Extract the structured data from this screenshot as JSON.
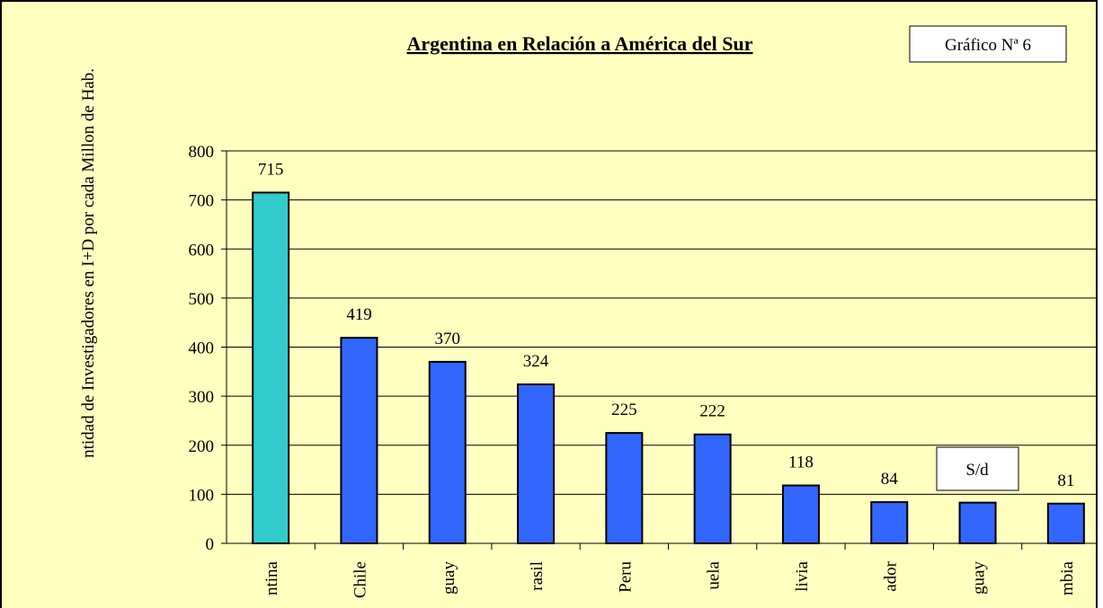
{
  "chart_data": {
    "type": "bar",
    "title": "Argentina en Relación a América del Sur",
    "badge": "Gráfico Nª 6",
    "y_label": "ntidad de Investigadores en I+D por cada Millon de Hab.",
    "annotation": "S/d",
    "categories": [
      "ntina",
      "Chile",
      "guay",
      "rasil",
      "Peru",
      "uela",
      "livia",
      "ador",
      "guay",
      "mbia"
    ],
    "values": [
      715,
      419,
      370,
      324,
      225,
      222,
      118,
      84,
      83,
      81
    ],
    "value_labels": [
      "715",
      "419",
      "370",
      "324",
      "225",
      "222",
      "118",
      "84",
      null,
      "81"
    ],
    "colors": [
      "#33cccc",
      "#3366ff",
      "#3366ff",
      "#3366ff",
      "#3366ff",
      "#3366ff",
      "#3366ff",
      "#3366ff",
      "#3366ff",
      "#3366ff"
    ],
    "ylim": [
      0,
      800
    ],
    "yticks": [
      0,
      100,
      200,
      300,
      400,
      500,
      600,
      700,
      800
    ],
    "grid": true
  }
}
